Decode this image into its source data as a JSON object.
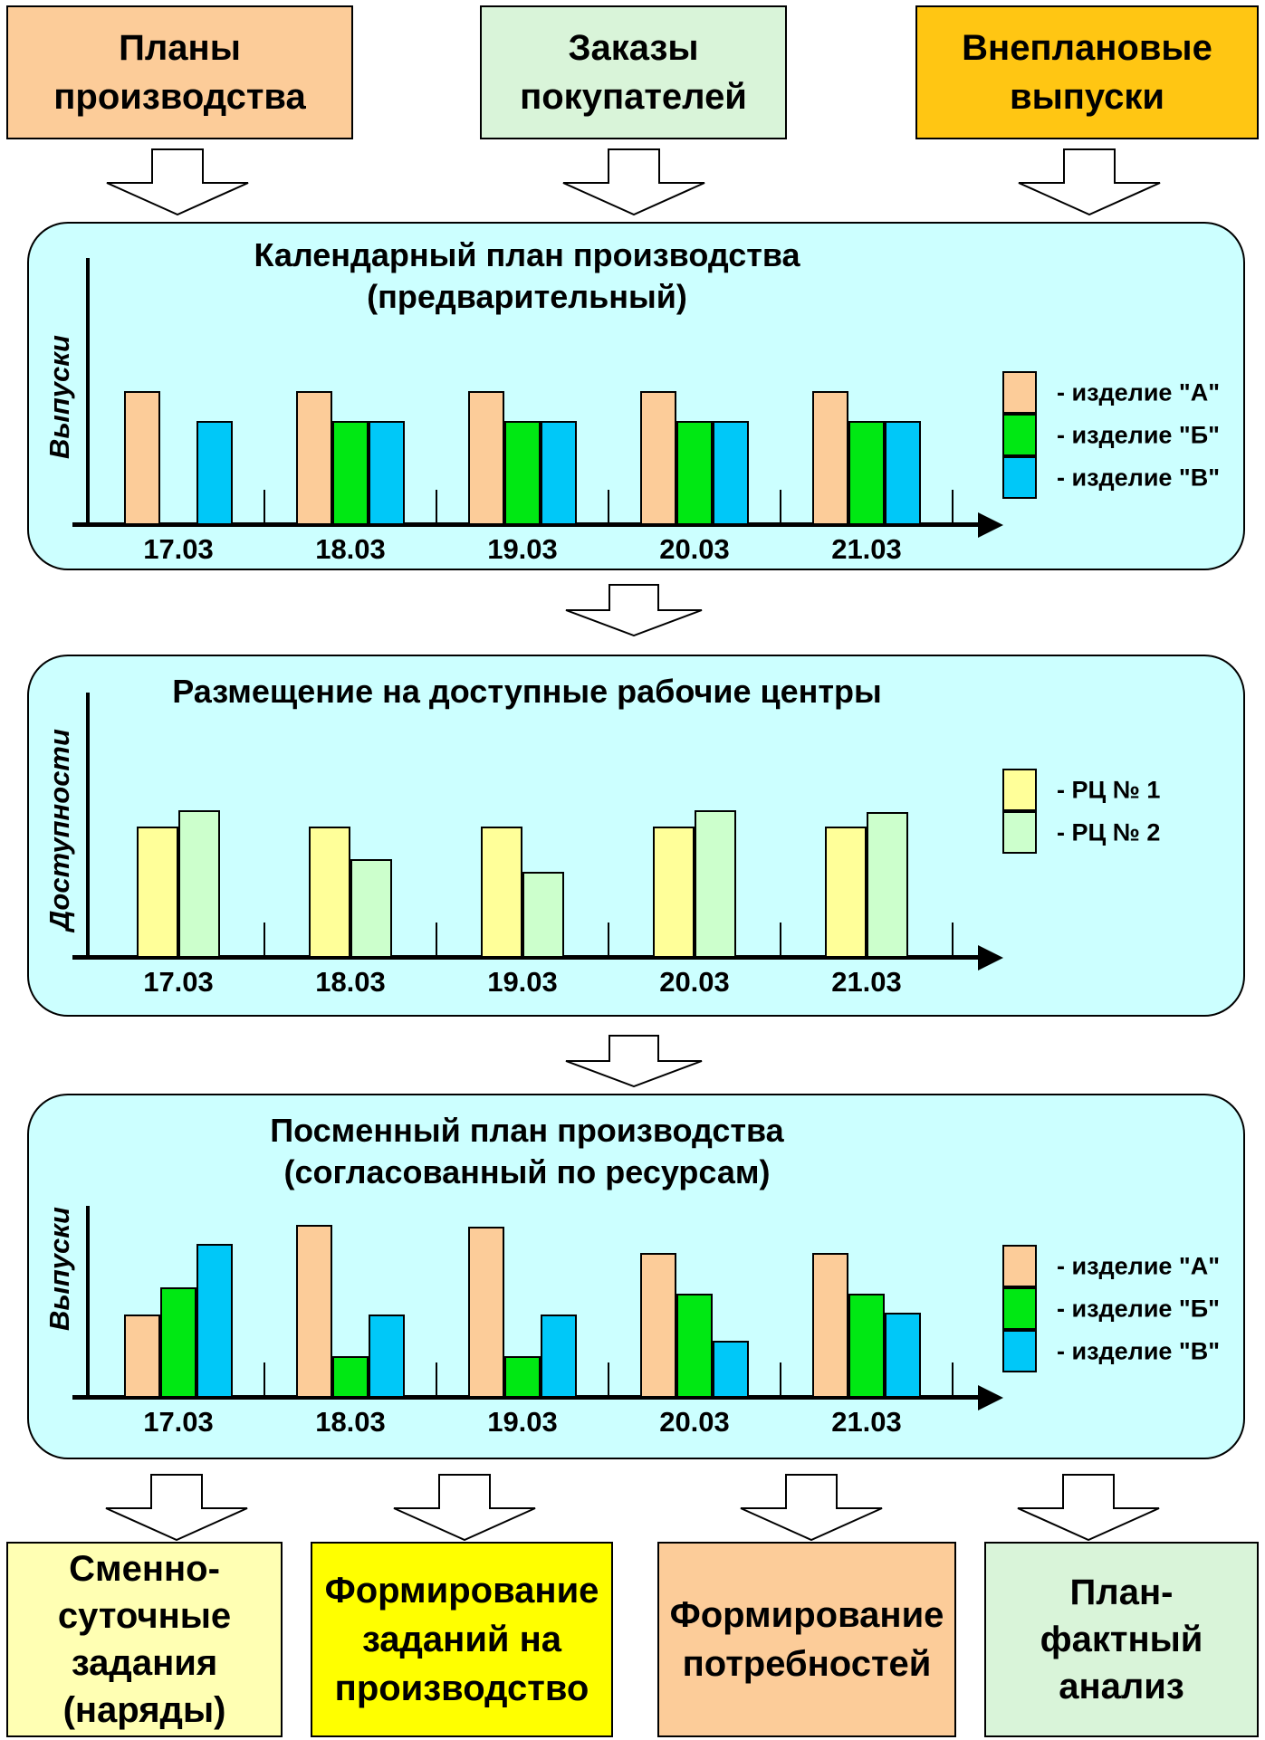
{
  "top_boxes": [
    {
      "lines": [
        "Планы",
        "производства"
      ],
      "color": "#FCCC99"
    },
    {
      "lines": [
        "Заказы",
        "покупателей"
      ],
      "color": "#D9F4D9"
    },
    {
      "lines": [
        "Внеплановые",
        "выпуски"
      ],
      "color": "#FFC613"
    }
  ],
  "chart_data": [
    {
      "type": "bar",
      "title_lines": [
        "Календарный план производства",
        "(предварительный)"
      ],
      "ylabel": "Выпуски",
      "xlabel": "",
      "categories": [
        "17.03",
        "18.03",
        "19.03",
        "20.03",
        "21.03"
      ],
      "value_scale": "percent of tallest bar (no numeric axis shown)",
      "ylim": [
        0,
        100
      ],
      "grid": false,
      "legend_position": "right",
      "series": [
        {
          "label": "- изделие \"А\"",
          "color": "#FCCC99",
          "values": [
            100,
            100,
            100,
            100,
            100
          ]
        },
        {
          "label": "- изделие \"Б\"",
          "color": "#00E813",
          "values": [
            null,
            78,
            78,
            78,
            78
          ]
        },
        {
          "label": "- изделие \"В\"",
          "color": "#00C8F8",
          "values": [
            78,
            78,
            78,
            78,
            78
          ]
        }
      ]
    },
    {
      "type": "bar",
      "title_lines": [
        "Размещение на доступные рабочие центры"
      ],
      "ylabel": "Доступности",
      "xlabel": "",
      "categories": [
        "17.03",
        "18.03",
        "19.03",
        "20.03",
        "21.03"
      ],
      "value_scale": "percent of tallest bar (no numeric axis shown)",
      "ylim": [
        0,
        100
      ],
      "grid": false,
      "legend_position": "right",
      "series": [
        {
          "label": "- РЦ № 1",
          "color": "#FFFF99",
          "values": [
            89,
            89,
            89,
            89,
            89
          ]
        },
        {
          "label": "- РЦ № 2",
          "color": "#CCFFCC",
          "values": [
            100,
            67,
            58,
            100,
            99
          ]
        }
      ]
    },
    {
      "type": "bar",
      "title_lines": [
        "Посменный план производства",
        "(согласованный по ресурсам)"
      ],
      "ylabel": "Выпуски",
      "xlabel": "",
      "categories": [
        "17.03",
        "18.03",
        "19.03",
        "20.03",
        "21.03"
      ],
      "value_scale": "percent of tallest bar (no numeric axis shown)",
      "ylim": [
        0,
        100
      ],
      "grid": false,
      "legend_position": "right",
      "series": [
        {
          "label": "- изделие \"А\"",
          "color": "#FCCC99",
          "values": [
            48,
            100,
            99,
            84,
            84
          ]
        },
        {
          "label": "- изделие \"Б\"",
          "color": "#00E813",
          "values": [
            64,
            24,
            24,
            60,
            60
          ]
        },
        {
          "label": "- изделие \"В\"",
          "color": "#00C8F8",
          "values": [
            89,
            48,
            48,
            33,
            49
          ]
        }
      ]
    }
  ],
  "bottom_boxes": [
    {
      "lines": [
        "Сменно-",
        "суточные",
        "задания",
        "(наряды)"
      ],
      "color": "#FFFFB3"
    },
    {
      "lines": [
        "Формирование",
        "заданий на",
        "производство"
      ],
      "color": "#FFFF00"
    },
    {
      "lines": [
        "Формирование",
        "потребностей"
      ],
      "color": "#FCCC99"
    },
    {
      "lines": [
        "План-",
        "фактный",
        "анализ"
      ],
      "color": "#D9F4D9"
    }
  ]
}
